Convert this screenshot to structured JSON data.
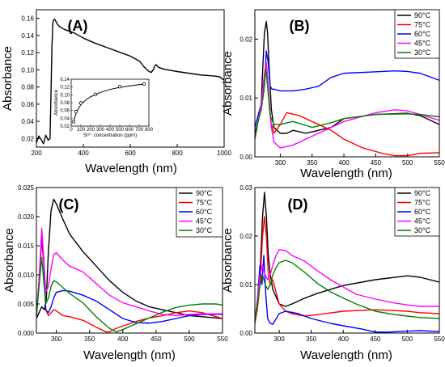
{
  "chart_data": [
    {
      "panel": "(A)",
      "type": "line",
      "xlabel": "Wavelength (nm)",
      "ylabel": "Absorbance",
      "xlim": [
        200,
        1000
      ],
      "ylim": [
        0.01,
        0.17
      ],
      "xticks": [
        200,
        400,
        600,
        800,
        1000
      ],
      "yticks": [
        0.02,
        0.04,
        0.06,
        0.08,
        0.1,
        0.12,
        0.14,
        0.16
      ],
      "ytick_labels": [
        "0.02",
        "0.04",
        "0.06",
        "0.08",
        "0.10",
        "0.12",
        "0.14",
        "0.16"
      ],
      "series": [
        {
          "color": "#000000",
          "x": [
            200,
            210,
            220,
            230,
            240,
            250,
            258,
            262,
            266,
            270,
            275,
            280,
            290,
            300,
            320,
            340,
            360,
            400,
            450,
            500,
            550,
            600,
            640,
            660,
            680,
            690,
            700,
            705,
            710,
            720,
            740,
            760,
            800,
            850,
            900,
            950,
            980,
            990,
            1000
          ],
          "y": [
            0.015,
            0.023,
            0.019,
            0.014,
            0.024,
            0.018,
            0.02,
            0.07,
            0.125,
            0.155,
            0.159,
            0.158,
            0.153,
            0.15,
            0.147,
            0.145,
            0.143,
            0.137,
            0.131,
            0.126,
            0.121,
            0.116,
            0.11,
            0.103,
            0.098,
            0.097,
            0.101,
            0.105,
            0.106,
            0.103,
            0.101,
            0.1,
            0.098,
            0.096,
            0.094,
            0.093,
            0.092,
            0.09,
            0.088
          ]
        }
      ],
      "inset": {
        "type": "scatter",
        "xlabel": "Sr²⁺ concentration (ppm)",
        "ylabel": "Absorbance",
        "xlim": [
          0,
          800
        ],
        "ylim": [
          0.02,
          0.14
        ],
        "xticks": [
          0,
          100,
          200,
          300,
          400,
          500,
          600,
          700,
          800
        ],
        "yticks": [
          0.02,
          0.04,
          0.06,
          0.08,
          0.1,
          0.12,
          0.14
        ],
        "ytick_labels": [
          "0.02",
          "0.04",
          "0.06",
          "0.08",
          "0.10",
          "0.12",
          "0.14"
        ],
        "points": {
          "x": [
            25,
            50,
            100,
            250,
            500,
            750
          ],
          "y": [
            0.031,
            0.057,
            0.079,
            0.101,
            0.121,
            0.128
          ]
        },
        "fit": {
          "x": [
            25,
            40,
            60,
            80,
            100,
            150,
            200,
            300,
            400,
            500,
            600,
            700,
            750
          ],
          "y": [
            0.03,
            0.045,
            0.058,
            0.067,
            0.075,
            0.087,
            0.095,
            0.106,
            0.114,
            0.119,
            0.123,
            0.126,
            0.127
          ]
        }
      }
    },
    {
      "panel": "(B)",
      "type": "line",
      "xlabel": "Wavelength (nm)",
      "ylabel": "Absorbance",
      "xlim": [
        260,
        550
      ],
      "ylim": [
        0,
        0.025
      ],
      "xticks": [
        300,
        350,
        400,
        450,
        500,
        550
      ],
      "yticks": [
        0,
        0.01,
        0.02
      ],
      "ytick_labels": [
        "0.00",
        "0.01",
        "0.02"
      ],
      "legend": [
        "90°C",
        "75°C",
        "60°C",
        "45°C",
        "30°C"
      ],
      "series": [
        {
          "name": "90°C",
          "color": "#000000",
          "x": [
            260,
            265,
            270,
            272,
            275,
            278,
            280,
            283,
            286,
            290,
            300,
            310,
            320,
            340,
            360,
            380,
            400,
            450,
            500,
            520,
            550
          ],
          "y": [
            0.004,
            0.006,
            0.009,
            0.014,
            0.021,
            0.023,
            0.021,
            0.014,
            0.008,
            0.005,
            0.004,
            0.004,
            0.0045,
            0.004,
            0.0045,
            0.005,
            0.0065,
            0.0072,
            0.0074,
            0.007,
            0.0055
          ]
        },
        {
          "name": "75°C",
          "color": "#ff0000",
          "x": [
            260,
            265,
            270,
            274,
            278,
            281,
            285,
            290,
            300,
            310,
            330,
            350,
            380,
            400,
            430,
            460,
            480,
            500,
            520,
            550
          ],
          "y": [
            0.003,
            0.006,
            0.009,
            0.013,
            0.016,
            0.012,
            0.006,
            0.004,
            0.0055,
            0.0075,
            0.007,
            0.006,
            0.0045,
            0.003,
            0.0015,
            0.0006,
            0.0002,
            0.0002,
            0.0006,
            0.0007
          ]
        },
        {
          "name": "60°C",
          "color": "#0000ff",
          "x": [
            260,
            265,
            270,
            275,
            278,
            281,
            284,
            287,
            290,
            300,
            320,
            340,
            360,
            380,
            400,
            440,
            480,
            500,
            520,
            550
          ],
          "y": [
            0.005,
            0.007,
            0.009,
            0.012,
            0.018,
            0.016,
            0.012,
            0.0115,
            0.0115,
            0.0112,
            0.0112,
            0.0115,
            0.012,
            0.0135,
            0.0142,
            0.0144,
            0.0146,
            0.0145,
            0.0142,
            0.013
          ]
        },
        {
          "name": "45°C",
          "color": "#ff00ff",
          "x": [
            260,
            265,
            270,
            275,
            278,
            282,
            286,
            290,
            300,
            320,
            340,
            360,
            400,
            450,
            480,
            500,
            520,
            550
          ],
          "y": [
            0.003,
            0.006,
            0.009,
            0.014,
            0.016,
            0.01,
            0.005,
            0.0025,
            0.0015,
            0.002,
            0.003,
            0.004,
            0.006,
            0.0075,
            0.008,
            0.0078,
            0.0072,
            0.0062
          ]
        },
        {
          "name": "30°C",
          "color": "#008000",
          "x": [
            260,
            265,
            270,
            274,
            277,
            280,
            284,
            290,
            300,
            320,
            350,
            380,
            400,
            450,
            500,
            520,
            550
          ],
          "y": [
            0.003,
            0.006,
            0.008,
            0.011,
            0.015,
            0.012,
            0.007,
            0.0055,
            0.0055,
            0.006,
            0.005,
            0.0058,
            0.0065,
            0.0072,
            0.0073,
            0.0072,
            0.0068
          ]
        }
      ]
    },
    {
      "panel": "(C)",
      "type": "line",
      "xlabel": "Wavelength (nm)",
      "ylabel": "Absorbance",
      "xlim": [
        270,
        550
      ],
      "ylim": [
        0,
        0.025
      ],
      "xticks": [
        300,
        350,
        400,
        450,
        500,
        550
      ],
      "yticks": [
        0,
        0.005,
        0.01,
        0.015,
        0.02,
        0.025
      ],
      "ytick_labels": [
        "0.000",
        "0.005",
        "0.010",
        "0.015",
        "0.020",
        "0.025"
      ],
      "legend": [
        "90°C",
        "75°C",
        "60°C",
        "45°C",
        "30°C"
      ],
      "series": [
        {
          "name": "90°C",
          "color": "#000000",
          "x": [
            270,
            274,
            278,
            282,
            285,
            288,
            292,
            296,
            300,
            310,
            320,
            340,
            360,
            380,
            400,
            420,
            440,
            460,
            480,
            500,
            520,
            550
          ],
          "y": [
            0.0025,
            0.0035,
            0.0045,
            0.004,
            0.006,
            0.014,
            0.021,
            0.023,
            0.0222,
            0.0195,
            0.017,
            0.014,
            0.0115,
            0.009,
            0.007,
            0.0055,
            0.0045,
            0.004,
            0.0035,
            0.003,
            0.0028,
            0.0025
          ]
        },
        {
          "name": "75°C",
          "color": "#ff0000",
          "x": [
            270,
            274,
            278,
            281,
            284,
            288,
            292,
            296,
            300,
            310,
            320,
            340,
            360,
            375,
            380,
            390,
            400,
            420,
            440,
            460,
            480,
            500,
            520,
            550
          ],
          "y": [
            0.0025,
            0.009,
            0.016,
            0.012,
            0.004,
            0.003,
            0.0035,
            0.004,
            0.0038,
            0.003,
            0.0028,
            0.0022,
            0.001,
            0.0002,
            0.0002,
            0.0008,
            0.0012,
            0.002,
            0.0026,
            0.003,
            0.0035,
            0.0038,
            0.0035,
            0.0025
          ]
        },
        {
          "name": "60°C",
          "color": "#0000ff",
          "x": [
            270,
            274,
            278,
            281,
            284,
            288,
            292,
            296,
            300,
            310,
            320,
            340,
            360,
            380,
            400,
            420,
            440,
            460,
            480,
            500,
            520,
            550
          ],
          "y": [
            0.003,
            0.009,
            0.017,
            0.013,
            0.004,
            0.0035,
            0.0045,
            0.006,
            0.007,
            0.0073,
            0.0072,
            0.0065,
            0.0055,
            0.004,
            0.0025,
            0.0018,
            0.0017,
            0.002,
            0.0025,
            0.003,
            0.0032,
            0.0032
          ]
        },
        {
          "name": "45°C",
          "color": "#ff00ff",
          "x": [
            270,
            274,
            278,
            281,
            284,
            288,
            292,
            296,
            300,
            310,
            320,
            340,
            360,
            380,
            400,
            420,
            440,
            460,
            480,
            500,
            520,
            550
          ],
          "y": [
            0.003,
            0.009,
            0.018,
            0.013,
            0.007,
            0.008,
            0.011,
            0.0135,
            0.0138,
            0.0125,
            0.0115,
            0.0105,
            0.0085,
            0.0065,
            0.0052,
            0.0045,
            0.0038,
            0.0032,
            0.003,
            0.0032,
            0.0033,
            0.0033
          ]
        },
        {
          "name": "30°C",
          "color": "#008000",
          "x": [
            270,
            274,
            278,
            281,
            284,
            288,
            292,
            296,
            300,
            310,
            320,
            340,
            360,
            380,
            390,
            400,
            420,
            440,
            460,
            480,
            500,
            520,
            540,
            550
          ],
          "y": [
            0.003,
            0.008,
            0.013,
            0.009,
            0.005,
            0.006,
            0.008,
            0.009,
            0.0088,
            0.0078,
            0.0068,
            0.0052,
            0.0028,
            0.0008,
            0.0002,
            0.0006,
            0.0016,
            0.0026,
            0.0036,
            0.0044,
            0.0048,
            0.005,
            0.005,
            0.0048
          ]
        }
      ]
    },
    {
      "panel": "(D)",
      "type": "line",
      "xlabel": "Wavelength (nm)",
      "ylabel": "Absorbance",
      "xlim": [
        262,
        550
      ],
      "ylim": [
        0,
        0.03
      ],
      "xticks": [
        300,
        350,
        400,
        450,
        500,
        550
      ],
      "yticks": [
        0,
        0.01,
        0.02,
        0.03
      ],
      "ytick_labels": [
        "0.00",
        "0.01",
        "0.02",
        "0.03"
      ],
      "legend": [
        "90°C",
        "75°C",
        "60°C",
        "45°C",
        "30°C"
      ],
      "series": [
        {
          "name": "90°C",
          "color": "#000000",
          "x": [
            262,
            266,
            270,
            274,
            277,
            280,
            283,
            286,
            290,
            300,
            310,
            320,
            340,
            360,
            400,
            450,
            500,
            520,
            550
          ],
          "y": [
            0.003,
            0.006,
            0.012,
            0.024,
            0.029,
            0.024,
            0.016,
            0.012,
            0.009,
            0.006,
            0.0055,
            0.006,
            0.0072,
            0.0082,
            0.0098,
            0.011,
            0.0118,
            0.0115,
            0.0105
          ]
        },
        {
          "name": "75°C",
          "color": "#ff0000",
          "x": [
            262,
            266,
            270,
            274,
            277,
            280,
            283,
            286,
            290,
            295,
            300,
            310,
            320,
            340,
            360,
            400,
            450,
            500,
            520,
            550
          ],
          "y": [
            0.002,
            0.005,
            0.01,
            0.02,
            0.024,
            0.02,
            0.012,
            0.01,
            0.011,
            0.0085,
            0.006,
            0.0045,
            0.004,
            0.0035,
            0.0038,
            0.0045,
            0.0048,
            0.0045,
            0.0042,
            0.004
          ]
        },
        {
          "name": "60°C",
          "color": "#0000ff",
          "x": [
            262,
            266,
            270,
            273,
            276,
            279,
            282,
            286,
            290,
            300,
            310,
            330,
            350,
            380,
            400,
            430,
            450,
            470,
            500,
            520,
            550
          ],
          "y": [
            0.002,
            0.007,
            0.014,
            0.01,
            0.016,
            0.008,
            0.003,
            0.002,
            0.0018,
            0.004,
            0.0045,
            0.004,
            0.003,
            0.002,
            0.0015,
            0.0008,
            0.0002,
            0.0002,
            0.0004,
            0.0005,
            0.0003
          ]
        },
        {
          "name": "45°C",
          "color": "#ff00ff",
          "x": [
            262,
            266,
            270,
            274,
            278,
            282,
            286,
            290,
            295,
            300,
            310,
            320,
            340,
            360,
            380,
            400,
            420,
            450,
            480,
            500,
            520,
            550
          ],
          "y": [
            0.002,
            0.007,
            0.012,
            0.014,
            0.012,
            0.011,
            0.012,
            0.014,
            0.016,
            0.0172,
            0.017,
            0.016,
            0.0148,
            0.0128,
            0.011,
            0.0095,
            0.008,
            0.007,
            0.0062,
            0.0058,
            0.0055,
            0.0055
          ]
        },
        {
          "name": "30°C",
          "color": "#008000",
          "x": [
            262,
            266,
            270,
            274,
            278,
            282,
            286,
            290,
            295,
            300,
            310,
            320,
            340,
            360,
            380,
            400,
            420,
            450,
            480,
            500,
            520,
            550
          ],
          "y": [
            0.002,
            0.006,
            0.01,
            0.012,
            0.01,
            0.009,
            0.01,
            0.012,
            0.0135,
            0.0145,
            0.015,
            0.0145,
            0.0125,
            0.0102,
            0.0085,
            0.0072,
            0.006,
            0.0045,
            0.0038,
            0.0035,
            0.0032,
            0.003
          ]
        }
      ]
    }
  ]
}
